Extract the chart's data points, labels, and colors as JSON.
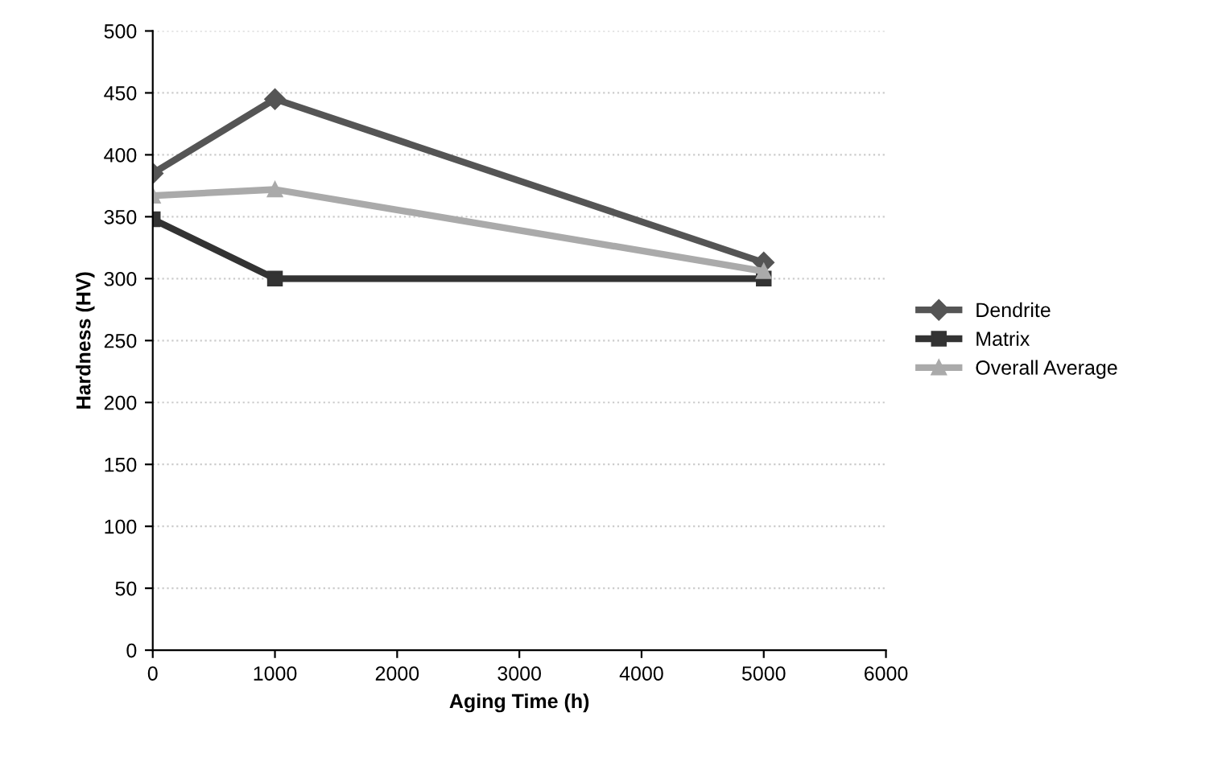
{
  "chart_data": {
    "type": "line",
    "xlabel": "Aging Time (h)",
    "ylabel": "Hardness (HV)",
    "x": [
      0,
      1000,
      5000
    ],
    "series": [
      {
        "name": "Dendrite",
        "color": "#555555",
        "marker": "diamond",
        "values": [
          385,
          445,
          313
        ]
      },
      {
        "name": "Matrix",
        "color": "#333333",
        "marker": "square",
        "values": [
          348,
          300,
          300
        ]
      },
      {
        "name": "Overall Average",
        "color": "#aaaaaa",
        "marker": "triangle",
        "values": [
          367,
          372,
          306
        ]
      }
    ],
    "xlim": [
      0,
      6000
    ],
    "xticks": [
      0,
      1000,
      2000,
      3000,
      4000,
      5000,
      6000
    ],
    "ylim": [
      0,
      500
    ],
    "yticks": [
      0,
      50,
      100,
      150,
      200,
      250,
      300,
      350,
      400,
      450,
      500
    ],
    "grid": "y",
    "legend": "right",
    "line_style": "solid"
  }
}
